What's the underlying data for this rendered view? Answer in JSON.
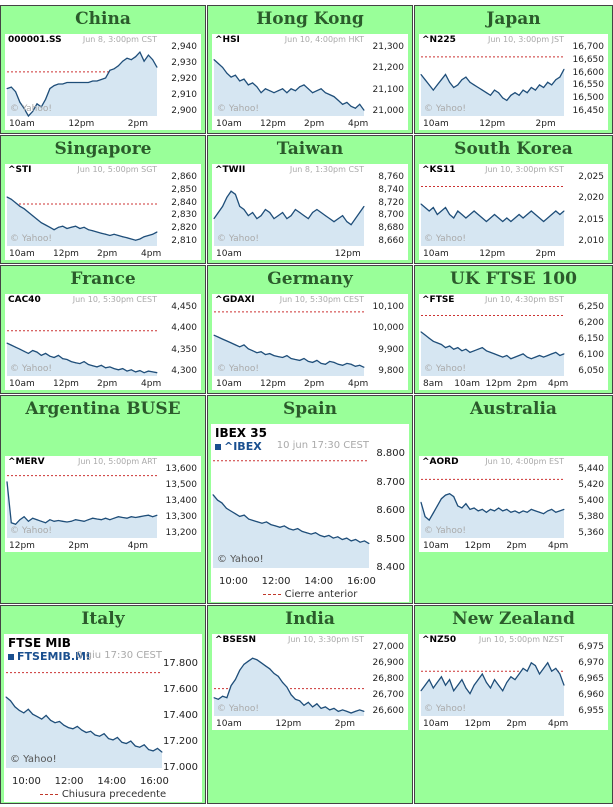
{
  "markets": [
    {
      "id": "china",
      "title": "China",
      "symbol": "000001.SS",
      "timestamp": "Jun 8, 3:00pm CST",
      "yticks": [
        "2,940",
        "2,930",
        "2,920",
        "2,910",
        "2,900"
      ],
      "xticks": [
        "10am",
        "12pm",
        "2pm"
      ],
      "yahoo": "© Yahoo!",
      "prev_close": 2927,
      "ylim": [
        2898,
        2944
      ],
      "series": [
        2916,
        2917,
        2914,
        2907,
        2903,
        2898,
        2901,
        2906,
        2904,
        2909,
        2916,
        2918,
        2919,
        2919,
        2920,
        2920,
        2920,
        2920,
        2920,
        2920,
        2921,
        2921,
        2922,
        2923,
        2928,
        2929,
        2931,
        2934,
        2936,
        2935,
        2937,
        2940,
        2934,
        2938,
        2935,
        2930
      ]
    },
    {
      "id": "hongkong",
      "title": "Hong Kong",
      "symbol": "^HSI",
      "timestamp": "Jun 10, 4:00pm HKT",
      "yticks": [
        "21,300",
        "21,200",
        "21,100",
        "21,000"
      ],
      "xticks": [
        "10am",
        "12pm",
        "2pm",
        "4pm"
      ],
      "yahoo": "© Yahoo!",
      "prev_close": 21000,
      "ylim": [
        20980,
        21340
      ],
      "series": [
        21270,
        21250,
        21230,
        21200,
        21180,
        21190,
        21160,
        21170,
        21140,
        21150,
        21130,
        21100,
        21120,
        21110,
        21100,
        21110,
        21120,
        21100,
        21120,
        21110,
        21130,
        21140,
        21120,
        21100,
        21110,
        21120,
        21100,
        21090,
        21080,
        21060,
        21040,
        21050,
        21030,
        21020,
        21040,
        21010
      ]
    },
    {
      "id": "japan",
      "title": "Japan",
      "symbol": "^N225",
      "timestamp": "Jun 10, 3:00pm JST",
      "yticks": [
        "16,700",
        "16,650",
        "16,600",
        "16,550",
        "16,500",
        "16,450"
      ],
      "xticks": [
        "10am",
        "12pm",
        "2pm"
      ],
      "yahoo": "© Yahoo!",
      "prev_close": 16668,
      "ylim": [
        16440,
        16710
      ],
      "series": [
        16600,
        16580,
        16560,
        16540,
        16560,
        16580,
        16600,
        16570,
        16550,
        16560,
        16580,
        16590,
        16570,
        16560,
        16550,
        16540,
        16530,
        16520,
        16540,
        16530,
        16510,
        16500,
        16520,
        16530,
        16520,
        16540,
        16530,
        16550,
        16540,
        16560,
        16550,
        16570,
        16560,
        16580,
        16590,
        16620
      ]
    },
    {
      "id": "singapore",
      "title": "Singapore",
      "symbol": "^STI",
      "timestamp": "Jun 10, 5:00pm SGT",
      "yticks": [
        "2,860",
        "2,850",
        "2,840",
        "2,830",
        "2,820",
        "2,810"
      ],
      "xticks": [
        "10am",
        "12pm",
        "2pm",
        "4pm"
      ],
      "yahoo": "© Yahoo!",
      "prev_close": 2842,
      "ylim": [
        2806,
        2866
      ],
      "series": [
        2848,
        2846,
        2843,
        2840,
        2838,
        2835,
        2832,
        2829,
        2826,
        2824,
        2822,
        2820,
        2822,
        2823,
        2821,
        2822,
        2823,
        2821,
        2822,
        2820,
        2819,
        2818,
        2817,
        2816,
        2815,
        2816,
        2815,
        2814,
        2813,
        2812,
        2811,
        2812,
        2814,
        2815,
        2816,
        2818
      ]
    },
    {
      "id": "taiwan",
      "title": "Taiwan",
      "symbol": "^TWII",
      "timestamp": "Jun 8, 1:30pm CST",
      "yticks": [
        "8,760",
        "8,740",
        "8,720",
        "8,700",
        "8,680",
        "8,660"
      ],
      "xticks": [
        "10am",
        "12pm"
      ],
      "yahoo": "© Yahoo!",
      "prev_close": 8675,
      "ylim": [
        8655,
        8770
      ],
      "series": [
        8700,
        8710,
        8720,
        8735,
        8745,
        8740,
        8720,
        8715,
        8705,
        8710,
        8700,
        8705,
        8715,
        8710,
        8700,
        8705,
        8710,
        8700,
        8705,
        8715,
        8710,
        8705,
        8700,
        8710,
        8715,
        8710,
        8705,
        8700,
        8695,
        8700,
        8705,
        8695,
        8690,
        8700,
        8710,
        8720
      ]
    },
    {
      "id": "southkorea",
      "title": "South Korea",
      "symbol": "^KS11",
      "timestamp": "Jun 10, 3:00pm KST",
      "yticks": [
        "2,025",
        "2,020",
        "2,015",
        "2,010"
      ],
      "xticks": [
        "10am",
        "12pm",
        "2pm"
      ],
      "yahoo": "© Yahoo!",
      "prev_close": 2025,
      "ylim": [
        2008,
        2028
      ],
      "series": [
        2020,
        2019,
        2018,
        2019,
        2017,
        2018,
        2019,
        2017,
        2016,
        2018,
        2017,
        2016,
        2017,
        2018,
        2017,
        2016,
        2015,
        2016,
        2017,
        2016,
        2015,
        2016,
        2015,
        2016,
        2017,
        2016,
        2017,
        2018,
        2017,
        2016,
        2015,
        2016,
        2017,
        2018,
        2017,
        2018
      ]
    },
    {
      "id": "france",
      "title": "France",
      "symbol": "CAC40",
      "timestamp": "Jun 10, 5:30pm CEST",
      "yticks": [
        "4,450",
        "4,400",
        "4,350",
        "4,300"
      ],
      "xticks": [
        "10am",
        "12pm",
        "2pm",
        "4pm"
      ],
      "yahoo": "© Yahoo!",
      "prev_close": 4400,
      "ylim": [
        4290,
        4460
      ],
      "series": [
        4370,
        4365,
        4360,
        4355,
        4350,
        4345,
        4352,
        4348,
        4340,
        4345,
        4338,
        4335,
        4340,
        4332,
        4330,
        4325,
        4322,
        4320,
        4325,
        4318,
        4315,
        4312,
        4316,
        4310,
        4312,
        4308,
        4305,
        4308,
        4302,
        4305,
        4300,
        4303,
        4298,
        4302,
        4300,
        4298
      ]
    },
    {
      "id": "germany",
      "title": "Germany",
      "symbol": "^GDAXI",
      "timestamp": "Jun 10, 5:30pm CEST",
      "yticks": [
        "10,100",
        "10,000",
        "9,900",
        "9,800"
      ],
      "xticks": [
        "10am",
        "12pm",
        "2pm",
        "4pm"
      ],
      "yahoo": "© Yahoo!",
      "prev_close": 10100,
      "ylim": [
        9770,
        10130
      ],
      "series": [
        9980,
        9970,
        9960,
        9950,
        9940,
        9930,
        9920,
        9930,
        9910,
        9900,
        9890,
        9895,
        9880,
        9885,
        9875,
        9870,
        9865,
        9875,
        9860,
        9855,
        9850,
        9860,
        9845,
        9840,
        9850,
        9835,
        9830,
        9845,
        9840,
        9830,
        9825,
        9835,
        9830,
        9820,
        9825,
        9815
      ]
    },
    {
      "id": "uk",
      "title": "UK FTSE 100",
      "symbol": "^FTSE",
      "timestamp": "Jun 10, 4:30pm BST",
      "yticks": [
        "6,250",
        "6,200",
        "6,150",
        "6,100",
        "6,050"
      ],
      "xticks": [
        "8am",
        "10am",
        "12pm",
        "2pm",
        "4pm"
      ],
      "yahoo": "© Yahoo!",
      "prev_close": 6232,
      "ylim": [
        6040,
        6262
      ],
      "series": [
        6180,
        6170,
        6160,
        6150,
        6145,
        6140,
        6130,
        6135,
        6125,
        6130,
        6120,
        6125,
        6115,
        6120,
        6125,
        6130,
        6120,
        6115,
        6110,
        6105,
        6100,
        6105,
        6095,
        6100,
        6105,
        6110,
        6100,
        6095,
        6100,
        6105,
        6100,
        6105,
        6110,
        6115,
        6105,
        6110
      ]
    },
    {
      "id": "argentina",
      "title": "Argentina BUSE",
      "symbol": "^MERV",
      "timestamp": "Jun 10, 5:00pm ART",
      "yticks": [
        "13,600",
        "13,500",
        "13,400",
        "13,300",
        "13,200"
      ],
      "xticks": [
        "12pm",
        "2pm",
        "4pm"
      ],
      "yahoo": "© Yahoo!",
      "prev_close": 13590,
      "ylim": [
        13180,
        13640
      ],
      "series": [
        13550,
        13280,
        13270,
        13300,
        13320,
        13290,
        13310,
        13300,
        13290,
        13280,
        13300,
        13290,
        13295,
        13290,
        13285,
        13290,
        13300,
        13295,
        13290,
        13300,
        13310,
        13305,
        13300,
        13310,
        13300,
        13310,
        13320,
        13315,
        13310,
        13320,
        13315,
        13320,
        13325,
        13330,
        13320,
        13330
      ]
    },
    {
      "id": "australia",
      "title": "Australia",
      "symbol": "^AORD",
      "timestamp": "Jun 10, 4:00pm EST",
      "yticks": [
        "5,440",
        "5,420",
        "5,400",
        "5,380",
        "5,360"
      ],
      "xticks": [
        "10am",
        "12pm",
        "2pm",
        "4pm"
      ],
      "yahoo": "© Yahoo!",
      "prev_close": 5432,
      "ylim": [
        5350,
        5448
      ],
      "series": [
        5400,
        5380,
        5375,
        5385,
        5395,
        5405,
        5410,
        5412,
        5408,
        5395,
        5392,
        5398,
        5390,
        5392,
        5388,
        5390,
        5386,
        5390,
        5388,
        5392,
        5388,
        5390,
        5386,
        5388,
        5385,
        5388,
        5386,
        5390,
        5388,
        5386,
        5384,
        5388,
        5390,
        5386,
        5388,
        5390
      ]
    },
    {
      "id": "india",
      "title": "India",
      "symbol": "^BSESN",
      "timestamp": "Jun 10, 3:30pm IST",
      "yticks": [
        "27,000",
        "26,900",
        "26,800",
        "26,700",
        "26,600"
      ],
      "xticks": [
        "10am",
        "12pm",
        "2pm"
      ],
      "yahoo": "© Yahoo!",
      "prev_close": 26760,
      "ylim": [
        26580,
        27040
      ],
      "series": [
        26700,
        26690,
        26710,
        26700,
        26780,
        26820,
        26880,
        26920,
        26940,
        26960,
        26950,
        26930,
        26910,
        26890,
        26860,
        26840,
        26800,
        26770,
        26720,
        26690,
        26680,
        26650,
        26670,
        26640,
        26660,
        26630,
        26640,
        26620,
        26630,
        26610,
        26620,
        26610,
        26600,
        26610,
        26620,
        26610
      ]
    },
    {
      "id": "newzealand",
      "title": "New Zealand",
      "symbol": "^NZ50",
      "timestamp": "Jun 10, 5:00pm NZST",
      "yticks": [
        "6,975",
        "6,970",
        "6,965",
        "6,960",
        "6,955"
      ],
      "xticks": [
        "10am",
        "12pm",
        "2pm",
        "4pm"
      ],
      "yahoo": "© Yahoo!",
      "prev_close": 6969,
      "ylim": [
        6953,
        6978
      ],
      "series": [
        6962,
        6964,
        6966,
        6963,
        6965,
        6967,
        6964,
        6966,
        6962,
        6964,
        6966,
        6963,
        6961,
        6964,
        6966,
        6968,
        6965,
        6963,
        6966,
        6964,
        6962,
        6965,
        6967,
        6966,
        6968,
        6970,
        6969,
        6972,
        6971,
        6968,
        6970,
        6972,
        6969,
        6970,
        6968,
        6964
      ]
    }
  ],
  "spain": {
    "title": "Spain",
    "chart_title": "IBEX 35",
    "symbol": "^IBEX",
    "timestamp": "10 jun 17:30 CEST",
    "yticks": [
      "8.800",
      "8.700",
      "8.600",
      "8.500",
      "8.400"
    ],
    "xticks": [
      "10:00",
      "12:00",
      "14:00",
      "16:00"
    ],
    "yahoo": "© Yahoo!",
    "legend": "Cierre anterior",
    "prev_close": 8785,
    "ylim": [
      8390,
      8810
    ],
    "series": [
      8660,
      8640,
      8630,
      8610,
      8600,
      8590,
      8580,
      8585,
      8570,
      8565,
      8560,
      8555,
      8560,
      8550,
      8545,
      8540,
      8545,
      8535,
      8530,
      8535,
      8525,
      8520,
      8515,
      8520,
      8510,
      8505,
      8510,
      8500,
      8505,
      8495,
      8500,
      8490,
      8495,
      8485,
      8490,
      8480
    ]
  },
  "italy": {
    "title": "Italy",
    "chart_title": "FTSE MIB",
    "symbol": "FTSEMIB.MI",
    "timestamp": "0 giu 17:30 CEST",
    "yticks": [
      "17.800",
      "17.600",
      "17.400",
      "17.200",
      "17.000"
    ],
    "xticks": [
      "10:00",
      "12:00",
      "14:00",
      "16:00"
    ],
    "yahoo": "© Yahoo!",
    "legend": "Chiusura precedente",
    "prev_close": 17760,
    "ylim": [
      16980,
      17830
    ],
    "series": [
      17560,
      17530,
      17480,
      17450,
      17430,
      17460,
      17420,
      17400,
      17380,
      17410,
      17370,
      17350,
      17360,
      17330,
      17310,
      17300,
      17320,
      17290,
      17270,
      17280,
      17250,
      17240,
      17260,
      17220,
      17210,
      17230,
      17190,
      17180,
      17200,
      17160,
      17150,
      17170,
      17130,
      17120,
      17140,
      17110
    ]
  }
}
